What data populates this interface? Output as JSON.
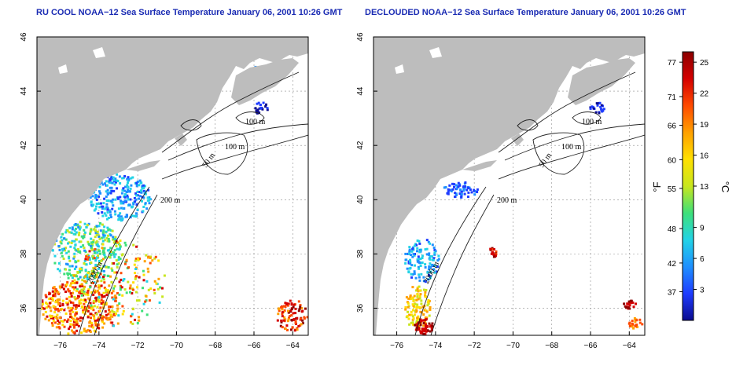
{
  "panels": [
    {
      "title": "RU COOL NOAA−12 Sea Surface Temperature January 06, 2001 10:26 GMT"
    },
    {
      "title": "DECLOUDED NOAA−12 Sea Surface Temperature January 06, 2001 10:26 GMT"
    }
  ],
  "map_axes": {
    "lon_ticks": [
      "−76",
      "−74",
      "−72",
      "−70",
      "−68",
      "−66",
      "−64"
    ],
    "lat_ticks": [
      "36",
      "38",
      "40",
      "42",
      "44",
      "46"
    ],
    "lon_range": [
      -77.2,
      -63.2
    ],
    "lat_range": [
      35.0,
      46.0
    ]
  },
  "contour_labels": [
    "100 m",
    "100 m",
    "50 m",
    "200 m",
    "2000 m"
  ],
  "colorbar": {
    "fahrenheit_ticks": [
      "77",
      "71",
      "66",
      "60",
      "55",
      "48",
      "42",
      "37"
    ],
    "celsius_ticks": [
      "25",
      "22",
      "19",
      "16",
      "13",
      "9",
      "6",
      "3"
    ],
    "fahrenheit_unit": "°F",
    "celsius_unit": "°C",
    "range_c": [
      0,
      26
    ],
    "colors": [
      "#0b0b8f",
      "#1e3cff",
      "#1e90ff",
      "#22d3e6",
      "#3ee07a",
      "#c8e61e",
      "#ffe000",
      "#ffa000",
      "#ff4a00",
      "#d40000",
      "#8b0000"
    ]
  },
  "colors": {
    "land": "#bdbdbd",
    "title": "#1a2bb3",
    "grid": "#8c8c8c"
  }
}
